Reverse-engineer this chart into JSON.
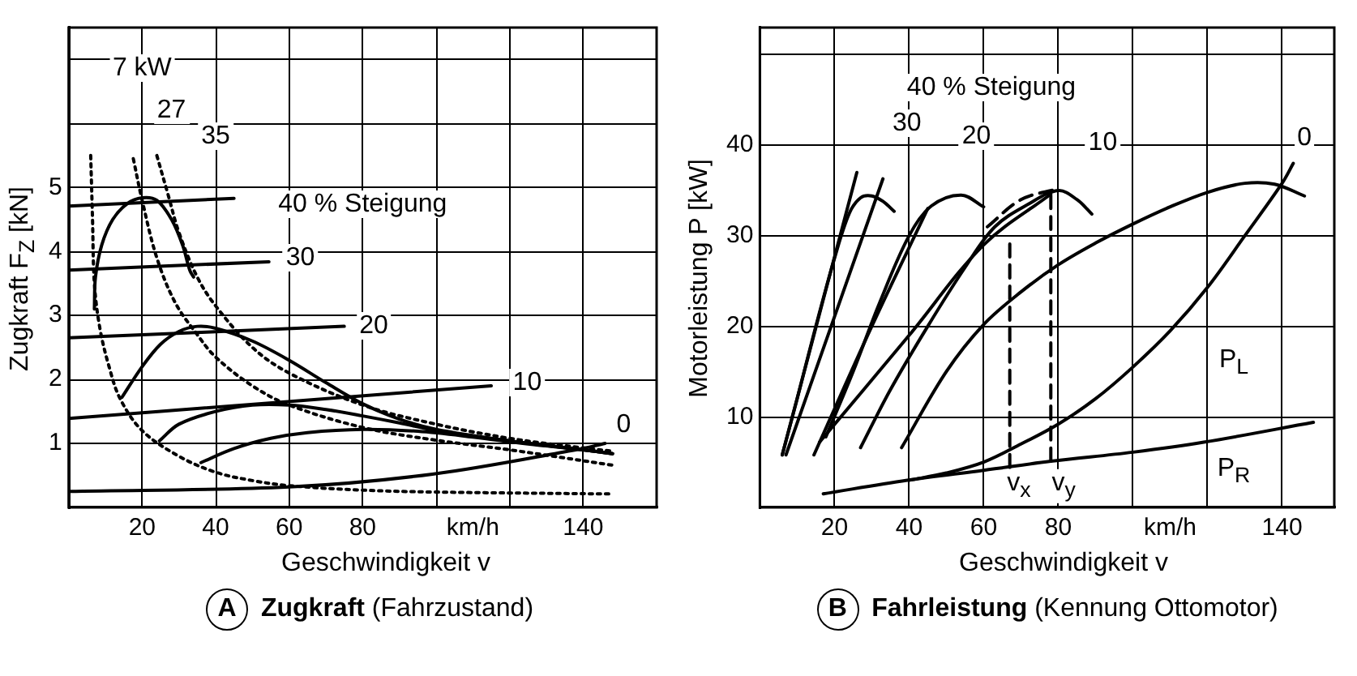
{
  "chart_data": [
    {
      "type": "line",
      "title": "Zugkraft",
      "subtitle": "(Fahrzustand)",
      "xlabel": "Geschwindigkeit v",
      "ylabel": "Zugkraft F$_{Z}$ [kN]",
      "xlim": [
        0,
        160
      ],
      "ylim": [
        0,
        7.5
      ],
      "xticks": [
        20,
        40,
        60,
        80,
        {
          "value": 100,
          "label": null
        },
        {
          "value": 110,
          "label": "km/h"
        },
        {
          "value": 120,
          "label": null
        },
        140
      ],
      "yticks": [
        1,
        2,
        3,
        4,
        5,
        {
          "value": 6,
          "label": null
        },
        {
          "value": 7,
          "label": null
        }
      ],
      "grid": true,
      "line_style": "solid",
      "series": [
        {
          "color": "#000000",
          "x": [
            0,
            45
          ],
          "values": [
            4.71,
            4.83
          ]
        },
        {
          "color": "#000000",
          "x": [
            0,
            54.5
          ],
          "values": [
            3.71,
            3.84
          ]
        },
        {
          "color": "#000000",
          "x": [
            0,
            75
          ],
          "values": [
            2.65,
            2.83
          ]
        },
        {
          "color": "#000000",
          "x": [
            0,
            115
          ],
          "values": [
            1.39,
            1.9
          ]
        },
        {
          "color": "#000000",
          "x": [
            0,
            60,
            99,
            138,
            146
          ],
          "values": [
            0.25,
            0.32,
            0.52,
            0.9,
            1.0
          ]
        },
        {
          "color": "#000000",
          "x": [
            7,
            7.3,
            9,
            12,
            16,
            20,
            24,
            28,
            31,
            33,
            34
          ],
          "values": [
            3.1,
            3.6,
            4.1,
            4.5,
            4.75,
            4.84,
            4.8,
            4.5,
            4.1,
            3.7,
            3.6
          ]
        },
        {
          "color": "#000000",
          "x": [
            14.5,
            20,
            25,
            30,
            35,
            40,
            50,
            60,
            70,
            80,
            90,
            100,
            120,
            140,
            148
          ],
          "values": [
            1.72,
            2.2,
            2.55,
            2.75,
            2.83,
            2.8,
            2.6,
            2.3,
            1.95,
            1.62,
            1.38,
            1.22,
            1.04,
            0.9,
            0.84
          ]
        },
        {
          "color": "#000000",
          "x": [
            24.7,
            30,
            40,
            50,
            60,
            70,
            80,
            90,
            100,
            120,
            140,
            148
          ],
          "values": [
            1.04,
            1.3,
            1.5,
            1.6,
            1.6,
            1.53,
            1.43,
            1.32,
            1.2,
            1.04,
            0.9,
            0.84
          ]
        },
        {
          "color": "#000000",
          "x": [
            36,
            45,
            55,
            65,
            80,
            95,
            110,
            125,
            140,
            148
          ],
          "values": [
            0.7,
            0.92,
            1.08,
            1.17,
            1.22,
            1.19,
            1.1,
            0.99,
            0.9,
            0.84
          ]
        },
        {
          "color": "#000000",
          "line_style": "dotted",
          "x": [
            6,
            6.5,
            7,
            8.5,
            11,
            14,
            20,
            30,
            40,
            50,
            60,
            80,
            100,
            148
          ],
          "values": [
            5.5,
            4.5,
            3.5,
            2.8,
            2.2,
            1.7,
            1.2,
            0.8,
            0.55,
            0.42,
            0.34,
            0.27,
            0.24,
            0.21
          ]
        },
        {
          "color": "#000000",
          "line_style": "dotted",
          "x": [
            17.6,
            20,
            24,
            29,
            35,
            40,
            50,
            60,
            80,
            100,
            120,
            148
          ],
          "values": [
            5.45,
            4.8,
            3.9,
            3.2,
            2.7,
            2.35,
            1.9,
            1.6,
            1.25,
            1.05,
            0.9,
            0.66
          ]
        },
        {
          "color": "#000000",
          "line_style": "dotted",
          "x": [
            24,
            27,
            30,
            35,
            40,
            50,
            60,
            80,
            100,
            120,
            140,
            148
          ],
          "values": [
            5.5,
            4.9,
            4.3,
            3.6,
            3.15,
            2.5,
            2.1,
            1.6,
            1.3,
            1.08,
            0.93,
            0.88
          ]
        }
      ],
      "annotations": [
        "A",
        "40 % Steigung",
        "7 kW",
        "27",
        "35",
        "30",
        "20",
        "10",
        "0"
      ]
    },
    {
      "type": "line",
      "title": "Fahrleistung",
      "subtitle": "(Kennung Ottomotor)",
      "xlabel": "Geschwindigkeit v",
      "ylabel": "Motorleistung P [kW]",
      "xlim": [
        0,
        154
      ],
      "ylim": [
        0,
        53
      ],
      "xticks": [
        20,
        40,
        60,
        80,
        {
          "value": 100,
          "label": null
        },
        {
          "value": 110,
          "label": "km/h"
        },
        {
          "value": 120,
          "label": null
        },
        140
      ],
      "yticks": [
        10,
        20,
        30,
        40,
        {
          "value": 50,
          "label": null
        }
      ],
      "grid": true,
      "line_style": "solid",
      "series": [
        {
          "color": "#000000",
          "x": [
            17,
            39.5,
            60,
            78,
            100,
            119,
            148.4
          ],
          "values": [
            1.5,
            3.0,
            4.1,
            5.1,
            6.1,
            7.2,
            9.4
          ]
        },
        {
          "color": "#000000",
          "x": [
            40,
            50,
            60,
            70,
            80,
            90,
            100,
            110,
            120,
            130,
            140,
            143
          ],
          "values": [
            3.0,
            3.8,
            5.0,
            7.0,
            9.2,
            12.0,
            15.5,
            19.5,
            24.3,
            30,
            35.8,
            38
          ]
        },
        {
          "color": "#000000",
          "x": [
            6,
            10,
            15,
            20,
            24,
            27,
            30,
            33,
            36
          ],
          "values": [
            5.8,
            12,
            20,
            27.5,
            32.5,
            34.2,
            34.4,
            33.8,
            32.7
          ]
        },
        {
          "color": "#000000",
          "x": [
            17.7,
            25,
            32,
            40,
            46,
            54,
            60
          ],
          "values": [
            7.8,
            15,
            22.5,
            30,
            33.3,
            34.5,
            33.2
          ]
        },
        {
          "color": "#000000",
          "x": [
            27,
            35,
            45,
            55,
            63,
            72,
            80,
            85,
            89
          ],
          "values": [
            6.6,
            13,
            20,
            26.5,
            31,
            33.5,
            35,
            34,
            32.4
          ]
        },
        {
          "color": "#000000",
          "x": [
            38,
            50,
            60,
            70,
            80,
            90,
            100,
            110,
            120,
            130,
            138,
            146
          ],
          "values": [
            6.6,
            15,
            20.2,
            23.8,
            26.8,
            29.2,
            31.3,
            33.2,
            34.8,
            35.8,
            35.7,
            34.4
          ]
        },
        {
          "color": "#000000",
          "x": [
            6,
            26
          ],
          "values": [
            5.8,
            37
          ]
        },
        {
          "color": "#000000",
          "x": [
            7,
            33
          ],
          "values": [
            5.8,
            36.3
          ]
        },
        {
          "color": "#000000",
          "x": [
            14.5,
            30,
            45
          ],
          "values": [
            5.8,
            20,
            33
          ]
        },
        {
          "color": "#000000",
          "x": [
            16,
            40,
            60,
            78
          ],
          "values": [
            7.2,
            19,
            29,
            34.6
          ]
        },
        {
          "color": "#000000",
          "line_style": "dashed",
          "x": [
            61,
            70,
            80
          ],
          "values": [
            31,
            34,
            35.2
          ]
        },
        {
          "color": "#000000",
          "line_style": "dashed",
          "x": [
            67,
            67
          ],
          "values": [
            4.4,
            30
          ]
        },
        {
          "color": "#000000",
          "line_style": "dashed",
          "x": [
            78,
            78
          ],
          "values": [
            5.1,
            35
          ]
        }
      ],
      "annotations": [
        "B",
        "40 % Steigung",
        "P$_{L}$",
        "P$_{R}$",
        "30",
        "20",
        "10",
        "0",
        "v$_{x}$",
        "v$_{y}$"
      ]
    }
  ]
}
